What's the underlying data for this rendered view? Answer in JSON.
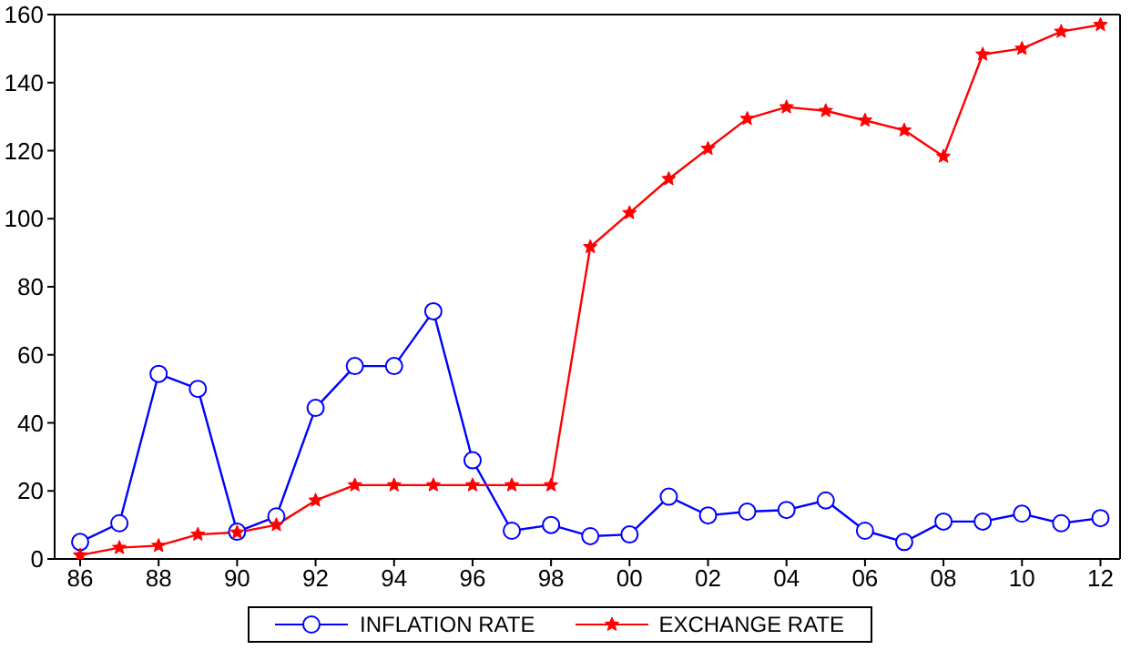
{
  "chart_data": {
    "type": "line",
    "x": [
      1986,
      1987,
      1988,
      1989,
      1990,
      1991,
      1992,
      1993,
      1994,
      1995,
      1996,
      1997,
      1998,
      1999,
      2000,
      2001,
      2002,
      2003,
      2004,
      2005,
      2006,
      2007,
      2008,
      2009,
      2010,
      2011,
      2012
    ],
    "series": [
      {
        "name": "INFLATION RATE",
        "color": "#0000ff",
        "marker": "circle",
        "values": [
          5,
          10.5,
          54.4,
          50,
          8,
          12.5,
          44.4,
          56.7,
          56.7,
          72.8,
          29,
          8.3,
          10,
          6.7,
          7.2,
          18.3,
          12.8,
          13.9,
          14.4,
          17.2,
          8.3,
          5,
          11,
          11,
          13.3,
          10.5,
          12
        ]
      },
      {
        "name": "EXCHANGE RATE",
        "color": "#ff0000",
        "marker": "star",
        "values": [
          1.1,
          3.3,
          3.9,
          7.2,
          7.8,
          10,
          17.2,
          21.7,
          21.7,
          21.7,
          21.7,
          21.7,
          21.7,
          91.7,
          101.7,
          111.7,
          120.6,
          129.4,
          132.8,
          131.7,
          128.9,
          126,
          118.3,
          148.3,
          150,
          155,
          157
        ]
      }
    ],
    "xlim": [
      1985.35,
      2012.5
    ],
    "xticks": [
      {
        "value": 1986,
        "label": "86"
      },
      {
        "value": 1988,
        "label": "88"
      },
      {
        "value": 1990,
        "label": "90"
      },
      {
        "value": 1992,
        "label": "92"
      },
      {
        "value": 1994,
        "label": "94"
      },
      {
        "value": 1996,
        "label": "96"
      },
      {
        "value": 1998,
        "label": "98"
      },
      {
        "value": 2000,
        "label": "00"
      },
      {
        "value": 2002,
        "label": "02"
      },
      {
        "value": 2004,
        "label": "04"
      },
      {
        "value": 2006,
        "label": "06"
      },
      {
        "value": 2008,
        "label": "08"
      },
      {
        "value": 2010,
        "label": "10"
      },
      {
        "value": 2012,
        "label": "12"
      }
    ],
    "ylim": [
      0,
      160
    ],
    "yticks": [
      0,
      20,
      40,
      60,
      80,
      100,
      120,
      140,
      160
    ],
    "grid": false,
    "legend": "bottom",
    "line_style": "solid"
  }
}
